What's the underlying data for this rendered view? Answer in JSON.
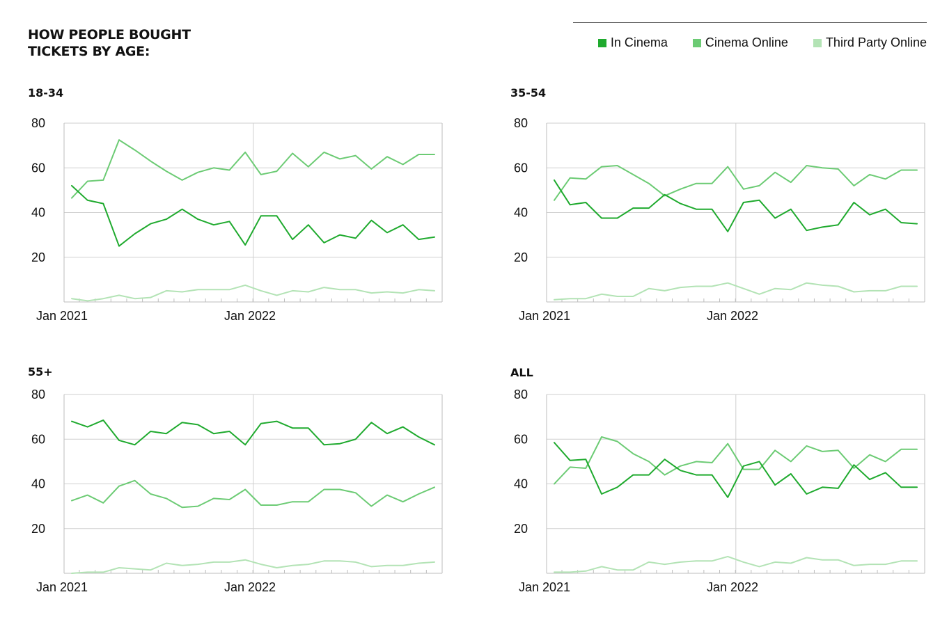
{
  "title": {
    "line1": "HOW PEOPLE BOUGHT",
    "line2": "TICKETS BY AGE:"
  },
  "legend": [
    {
      "name": "In Cinema",
      "color": "#1faa2e"
    },
    {
      "name": "Cinema Online",
      "color": "#6ccb74"
    },
    {
      "name": "Third Party Online",
      "color": "#b3e3b5"
    }
  ],
  "chart_data": [
    {
      "type": "line",
      "title": "18-34",
      "x_tick_labels": [
        "Jan 2021",
        "Jan 2022"
      ],
      "y_ticks": [
        20,
        40,
        60,
        80
      ],
      "ylim": [
        0,
        80
      ],
      "grid": true,
      "series": [
        {
          "name": "In Cinema",
          "values": [
            52,
            45.5,
            44,
            25,
            30.5,
            35,
            37,
            41.5,
            37,
            34.5,
            36,
            25.5,
            38.5,
            38.5,
            28,
            34.5,
            26.5,
            30,
            28.5,
            36.5,
            31,
            34.5,
            28,
            29
          ]
        },
        {
          "name": "Cinema Online",
          "values": [
            46.5,
            54,
            54.5,
            72.5,
            68,
            63,
            58.5,
            54.5,
            58,
            60,
            59,
            67,
            57,
            58.5,
            66.5,
            60.5,
            67,
            64,
            65.5,
            59.5,
            65,
            61.5,
            66,
            66
          ]
        },
        {
          "name": "Third Party Online",
          "values": [
            1.5,
            0.5,
            1.5,
            3,
            1.5,
            2,
            5,
            4.5,
            5.5,
            5.5,
            5.5,
            7.5,
            5,
            3,
            5,
            4.5,
            6.5,
            5.5,
            5.5,
            4,
            4.5,
            4,
            5.5,
            5
          ]
        }
      ]
    },
    {
      "type": "line",
      "title": "35-54",
      "x_tick_labels": [
        "Jan 2021",
        "Jan 2022"
      ],
      "y_ticks": [
        20,
        40,
        60,
        80
      ],
      "ylim": [
        0,
        80
      ],
      "grid": true,
      "series": [
        {
          "name": "In Cinema",
          "values": [
            54.5,
            43.5,
            44.5,
            37.5,
            37.5,
            42,
            42,
            48,
            44,
            41.5,
            41.5,
            31.5,
            44.5,
            45.5,
            37.5,
            41.5,
            32,
            33.5,
            34.5,
            44.5,
            39,
            41.5,
            35.5,
            35
          ]
        },
        {
          "name": "Cinema Online",
          "values": [
            45.5,
            55.5,
            55,
            60.5,
            61,
            57,
            53,
            47.5,
            50.5,
            53,
            53,
            60.5,
            50.5,
            52,
            58,
            53.5,
            61,
            60,
            59.5,
            52,
            57,
            55,
            59,
            59
          ]
        },
        {
          "name": "Third Party Online",
          "values": [
            1,
            1.5,
            1.5,
            3.5,
            2.5,
            2.5,
            6,
            5,
            6.5,
            7,
            7,
            8.5,
            6,
            3.5,
            6,
            5.5,
            8.5,
            7.5,
            7,
            4.5,
            5,
            5,
            7,
            7
          ]
        }
      ]
    },
    {
      "type": "line",
      "title": "55+",
      "x_tick_labels": [
        "Jan 2021",
        "Jan 2022"
      ],
      "y_ticks": [
        20,
        40,
        60,
        80
      ],
      "ylim": [
        0,
        80
      ],
      "grid": true,
      "series": [
        {
          "name": "In Cinema",
          "values": [
            68,
            65.5,
            68.5,
            59.5,
            57.5,
            63.5,
            62.5,
            67.5,
            66.5,
            62.5,
            63.5,
            57.5,
            67,
            68,
            65,
            65,
            57.5,
            58,
            60,
            67.5,
            62.5,
            65.5,
            61,
            57.5
          ]
        },
        {
          "name": "Cinema Online",
          "values": [
            32.5,
            35,
            31.5,
            39,
            41.5,
            35.5,
            33.5,
            29.5,
            30,
            33.5,
            33,
            37.5,
            30.5,
            30.5,
            32,
            32,
            37.5,
            37.5,
            36,
            30,
            35,
            32,
            35.5,
            38.5
          ]
        },
        {
          "name": "Third Party Online",
          "values": [
            0,
            0.5,
            0.5,
            2.5,
            2,
            1.5,
            4.5,
            3.5,
            4,
            5,
            5,
            6,
            4,
            2.5,
            3.5,
            4,
            5.5,
            5.5,
            5,
            3,
            3.5,
            3.5,
            4.5,
            5
          ]
        }
      ]
    },
    {
      "type": "line",
      "title": "ALL",
      "x_tick_labels": [
        "Jan 2021",
        "Jan 2022"
      ],
      "y_ticks": [
        20,
        40,
        60,
        80
      ],
      "ylim": [
        0,
        80
      ],
      "grid": true,
      "series": [
        {
          "name": "In Cinema",
          "values": [
            58.5,
            50.5,
            51,
            35.5,
            38.5,
            44,
            44,
            51,
            46,
            44,
            44,
            34,
            48,
            50,
            39.5,
            44.5,
            35.5,
            38.5,
            38,
            48.5,
            42,
            45,
            38.5,
            38.5
          ]
        },
        {
          "name": "Cinema Online",
          "values": [
            40,
            47.5,
            47,
            61,
            59,
            53.5,
            50,
            44,
            48,
            50,
            49.5,
            58,
            46.5,
            46.5,
            55,
            50,
            57,
            54.5,
            55,
            47,
            53,
            50,
            55.5,
            55.5
          ]
        },
        {
          "name": "Third Party Online",
          "values": [
            0.5,
            0.5,
            1,
            3,
            1.5,
            1.5,
            5,
            4,
            5,
            5.5,
            5.5,
            7.5,
            5,
            3,
            5,
            4.5,
            7,
            6,
            6,
            3.5,
            4,
            4,
            5.5,
            5.5
          ]
        }
      ]
    }
  ]
}
